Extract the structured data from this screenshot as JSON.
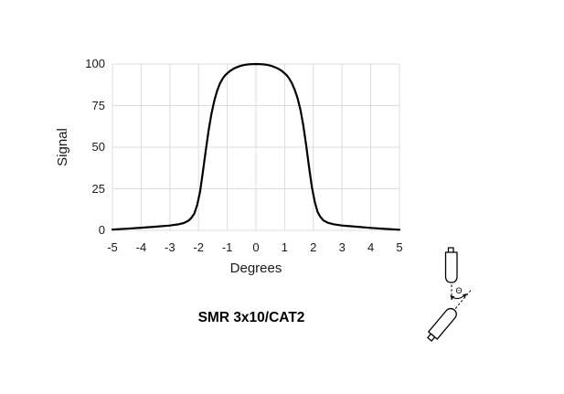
{
  "chart_data": {
    "type": "line",
    "title": "SMR 3x10/CAT2",
    "xlabel": "Degrees",
    "ylabel": "Signal",
    "xlim": [
      -5,
      5
    ],
    "ylim": [
      0,
      100
    ],
    "x_ticks": [
      -5,
      -4,
      -3,
      -2,
      -1,
      0,
      1,
      2,
      3,
      4,
      5
    ],
    "y_ticks": [
      0,
      25,
      50,
      75,
      100
    ],
    "grid": true,
    "legend": "none",
    "line_color": "#000000",
    "grid_color": "#dcdcdc",
    "text_color": "#1a1a1a",
    "series": [
      {
        "name": "signal",
        "points": [
          [
            -5.0,
            0.5
          ],
          [
            -4.5,
            1.0
          ],
          [
            -4.0,
            1.6
          ],
          [
            -3.5,
            2.2
          ],
          [
            -3.0,
            2.9
          ],
          [
            -2.7,
            3.6
          ],
          [
            -2.5,
            4.5
          ],
          [
            -2.35,
            5.8
          ],
          [
            -2.25,
            7.5
          ],
          [
            -2.15,
            10
          ],
          [
            -2.05,
            15
          ],
          [
            -1.95,
            23
          ],
          [
            -1.85,
            35
          ],
          [
            -1.75,
            48
          ],
          [
            -1.65,
            60
          ],
          [
            -1.55,
            70
          ],
          [
            -1.45,
            78
          ],
          [
            -1.35,
            84
          ],
          [
            -1.25,
            88.5
          ],
          [
            -1.15,
            91.5
          ],
          [
            -1.05,
            93.6
          ],
          [
            -0.9,
            95.8
          ],
          [
            -0.75,
            97.4
          ],
          [
            -0.6,
            98.5
          ],
          [
            -0.45,
            99.3
          ],
          [
            -0.3,
            99.7
          ],
          [
            -0.15,
            99.9
          ],
          [
            0,
            100
          ],
          [
            0.15,
            99.9
          ],
          [
            0.3,
            99.7
          ],
          [
            0.45,
            99.3
          ],
          [
            0.6,
            98.5
          ],
          [
            0.75,
            97.4
          ],
          [
            0.9,
            95.8
          ],
          [
            1.05,
            93.6
          ],
          [
            1.15,
            91.5
          ],
          [
            1.25,
            88.5
          ],
          [
            1.35,
            84.5
          ],
          [
            1.45,
            79.5
          ],
          [
            1.55,
            72.5
          ],
          [
            1.65,
            63
          ],
          [
            1.75,
            51
          ],
          [
            1.85,
            38
          ],
          [
            1.95,
            26
          ],
          [
            2.05,
            17
          ],
          [
            2.15,
            11
          ],
          [
            2.25,
            8
          ],
          [
            2.35,
            6
          ],
          [
            2.5,
            4.6
          ],
          [
            2.7,
            3.7
          ],
          [
            3.0,
            2.9
          ],
          [
            3.5,
            2.2
          ],
          [
            4.0,
            1.5
          ],
          [
            4.5,
            0.9
          ],
          [
            5.0,
            0.4
          ]
        ]
      }
    ]
  },
  "diagram": {
    "angle_label": "Θ",
    "icons": [
      "fixed-device-icon",
      "rotated-device-icon",
      "angle-arc-icon",
      "axis-dashed-lines"
    ]
  }
}
